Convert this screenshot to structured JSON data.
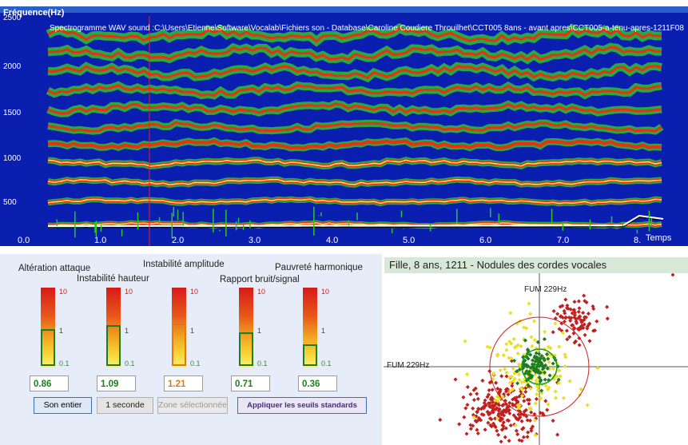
{
  "spectrogram": {
    "y_title": "Fréquence(Hz)",
    "title": "Spectrogramme WAV sound :C:\\Users\\Etienne\\Software\\Vocalab\\Fichiers son - Database\\Caroline Coudiere Throuilhet\\CCT005 8ans - avant apres\\CCT005-a-tenu-apres-1211F08",
    "y_ticks": [
      "2500",
      "2000",
      "1500",
      "1000",
      "500"
    ],
    "x_ticks": [
      "0.0",
      "1.0",
      "2.0",
      "3.0",
      "4.0",
      "5.0",
      "6.0",
      "7.0",
      "8."
    ],
    "x_unit": "Temps",
    "colors": {
      "background": "#0a1fb0",
      "noise": "#2ec22e",
      "harmonic": "#e83018",
      "peak": "#fff27a",
      "cursor": "#e82020"
    }
  },
  "indicators": {
    "labels": {
      "attaque": "Altération attaque",
      "hauteur": "Instabilité hauteur",
      "amplitude": "Instabilité amplitude",
      "bruit": "Rapport bruit/signal",
      "harmonique": "Pauvreté harmonique"
    },
    "scale": {
      "top": "10",
      "mid": "1",
      "bottom": "0.1"
    },
    "values": [
      {
        "value": "0.86",
        "level": 0.86,
        "color": "#1e7d1e"
      },
      {
        "value": "1.09",
        "level": 1.09,
        "color": "#1e7d1e"
      },
      {
        "value": "1.21",
        "level": 1.21,
        "color": "#e07a10"
      },
      {
        "value": "0.71",
        "level": 0.71,
        "color": "#1e7d1e"
      },
      {
        "value": "0.36",
        "level": 0.36,
        "color": "#1e7d1e"
      }
    ]
  },
  "buttons": {
    "son_entier": "Son entier",
    "une_seconde": "1 seconde",
    "zone": "Zone sélectionnée",
    "seuils": "Appliquer les seuils standards"
  },
  "scatter": {
    "title": "Fille,  8 ans, 1211 -  Nodules des cordes vocales",
    "axis_label_x": "FUM 229Hz",
    "axis_label_y": "FUM 229Hz",
    "colors": {
      "outer": "#c02020",
      "mid": "#e8e020",
      "inner": "#1e7d1e",
      "circle_outer": "#d02020",
      "circle_inner": "#1e9a1e"
    }
  }
}
